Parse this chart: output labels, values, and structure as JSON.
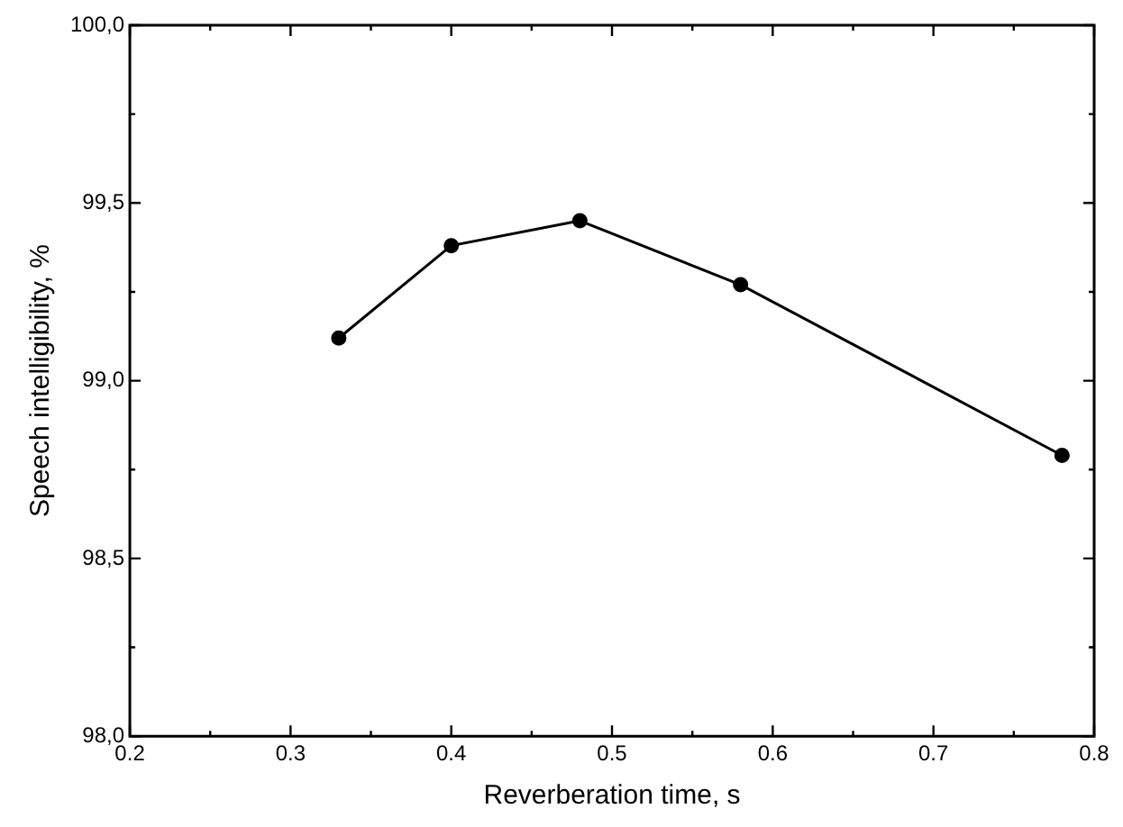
{
  "chart_data": {
    "type": "line",
    "xlabel": "Reverberation time, s",
    "ylabel": "Speech intelligibility, %",
    "x": [
      0.33,
      0.4,
      0.48,
      0.58,
      0.78
    ],
    "series": [
      {
        "color": "#000000",
        "values": [
          99.12,
          99.38,
          99.45,
          99.27,
          98.79
        ]
      }
    ],
    "xlim": [
      0.2,
      0.8
    ],
    "xticks": [
      0.2,
      0.3,
      0.4,
      0.5,
      0.6,
      0.7,
      0.8
    ],
    "ylim": [
      98.0,
      100.0
    ],
    "yticks": [
      {
        "value": 98.0,
        "label": "98,0"
      },
      {
        "value": 98.5,
        "label": "98,5"
      },
      {
        "value": 99.0,
        "label": "99,0"
      },
      {
        "value": 99.5,
        "label": "99,5"
      },
      {
        "value": 100.0,
        "label": "100,0"
      }
    ],
    "marker": "circle",
    "line_style": "solid",
    "grid": false,
    "legend": false
  }
}
